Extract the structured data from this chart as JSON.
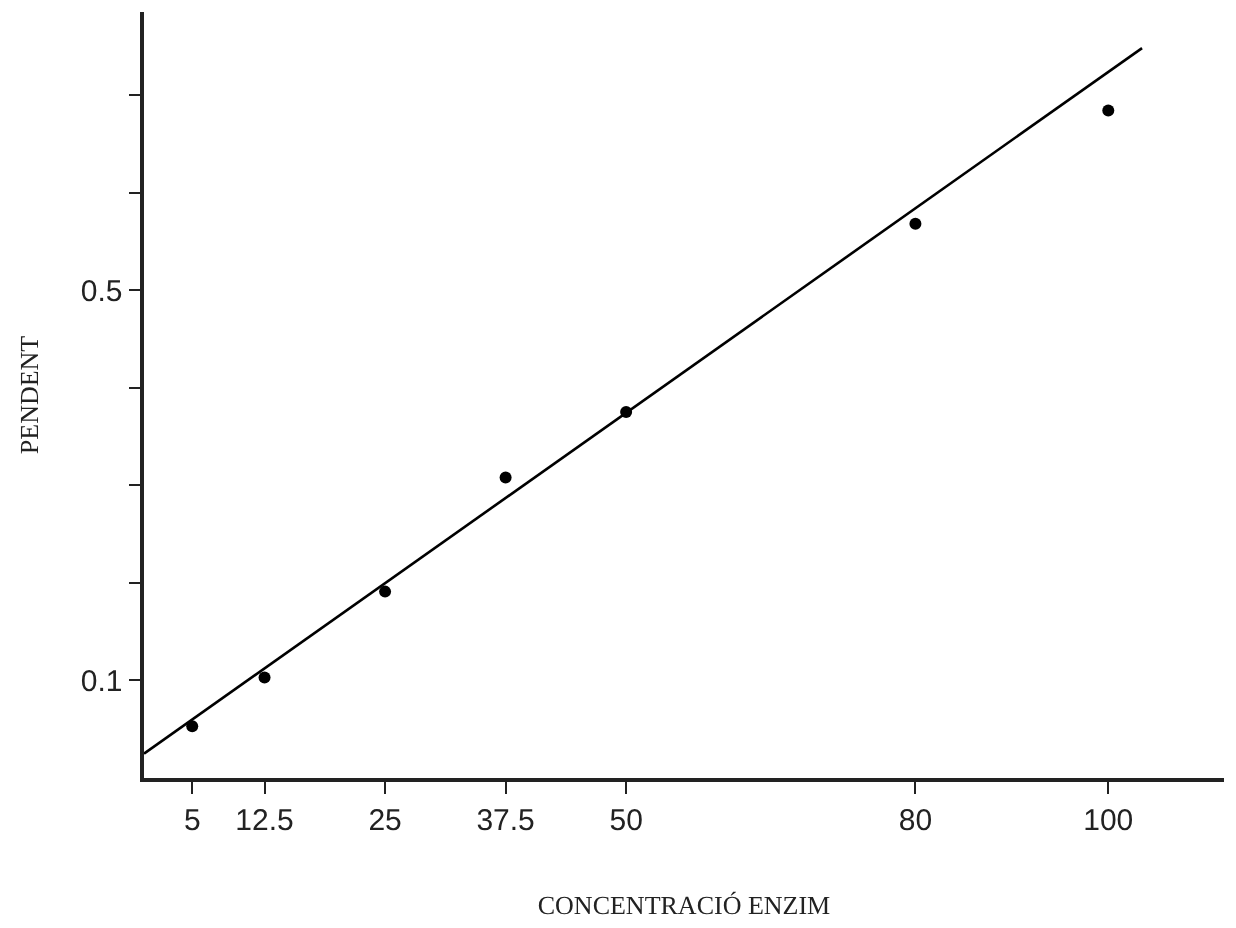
{
  "chart_data": {
    "type": "scatter",
    "xlabel": "CONCENTRACIÓ ENZIM",
    "ylabel": "PENDENT",
    "x": [
      5,
      12.5,
      25,
      37.5,
      50,
      80,
      100
    ],
    "series": [
      {
        "color": "#000000",
        "marker": "circle",
        "values": [
          0.053,
          0.103,
          0.191,
          0.308,
          0.375,
          0.568,
          0.684
        ]
      },
      {
        "type": "line",
        "marker": "none",
        "color": "#000000",
        "x": [
          0,
          103.5
        ],
        "values": [
          0.025,
          0.748
        ]
      }
    ],
    "xlim": [
      0,
      112
    ],
    "ylim": [
      0,
      0.785
    ],
    "xticks": [
      5,
      12.5,
      25,
      37.5,
      50,
      80,
      100
    ],
    "yticks": [
      {
        "value": 0.1,
        "label": "0.1"
      },
      {
        "value": 0.2,
        "label": null
      },
      {
        "value": 0.3,
        "label": null
      },
      {
        "value": 0.4,
        "label": null
      },
      {
        "value": 0.5,
        "label": "0.5"
      },
      {
        "value": 0.6,
        "label": null
      },
      {
        "value": 0.7,
        "label": null
      }
    ],
    "legend": false
  }
}
